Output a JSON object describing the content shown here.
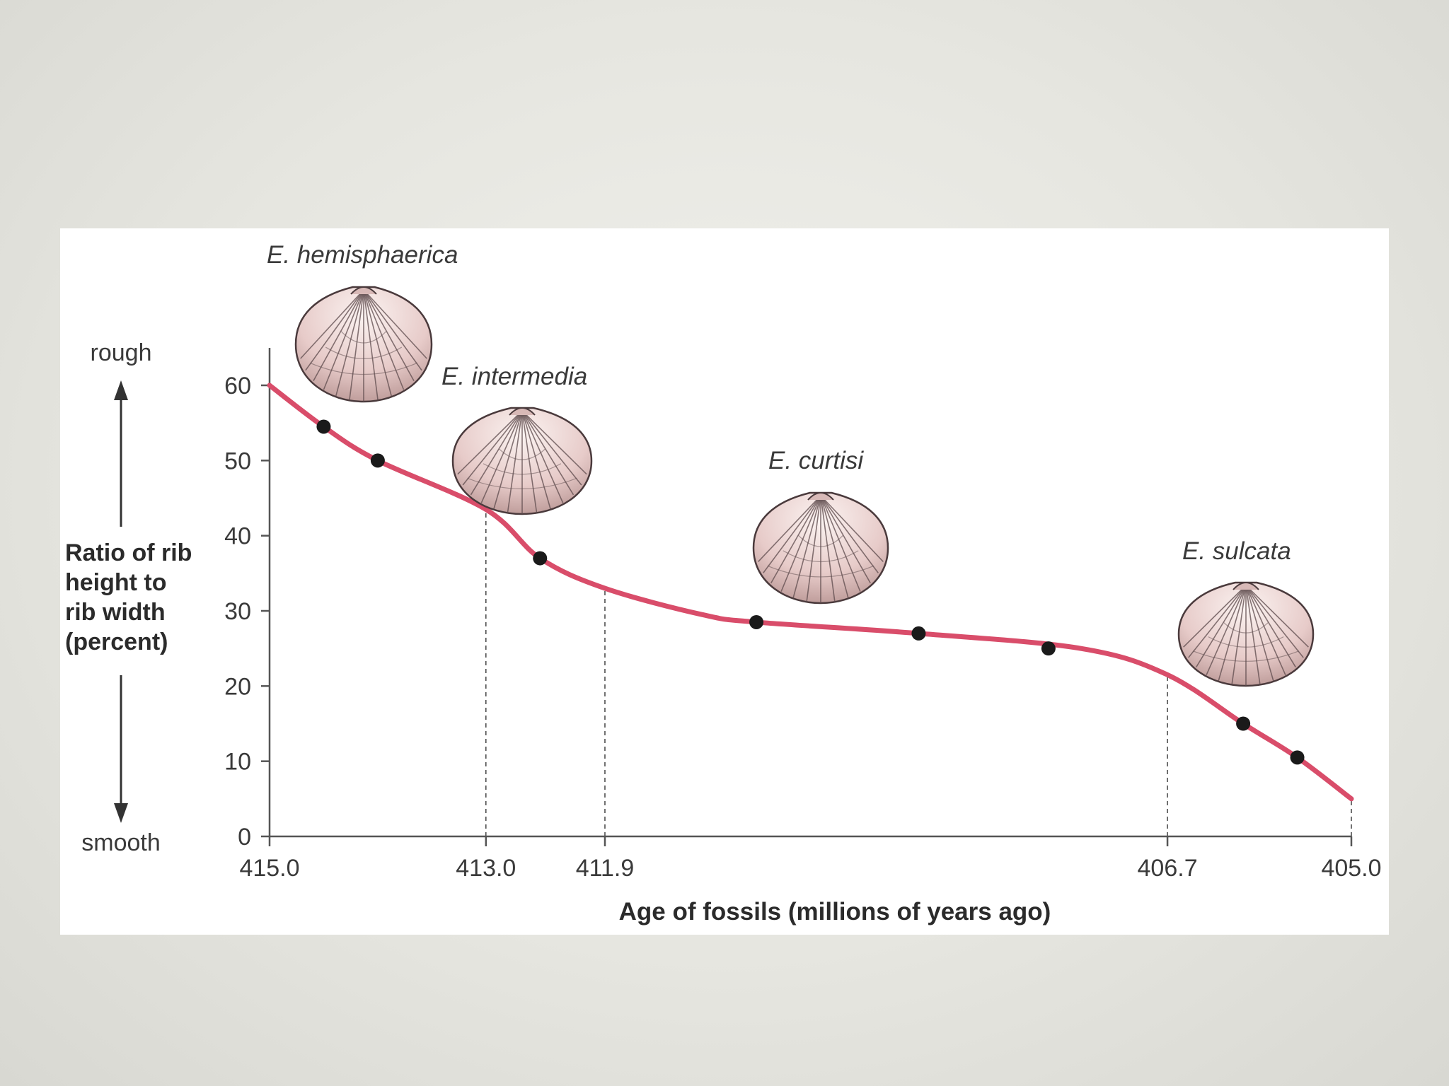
{
  "chart_data": {
    "type": "line",
    "xlabel": "Age of fossils (millions of years ago)",
    "ylabel": [
      "Ratio of rib",
      "height to",
      "rib width",
      "(percent)"
    ],
    "y_top_word": "rough",
    "y_bottom_word": "smooth",
    "ylim": [
      0,
      60
    ],
    "xlim": [
      415.0,
      405.0
    ],
    "yticks": [
      0,
      10,
      20,
      30,
      40,
      50,
      60
    ],
    "xticks": [
      {
        "label": "415.0",
        "value": 415.0
      },
      {
        "label": "413.0",
        "value": 413.0
      },
      {
        "label": "411.9",
        "value": 411.9
      },
      {
        "label": "406.7",
        "value": 406.7
      },
      {
        "label": "405.0",
        "value": 405.0
      }
    ],
    "boundaries": [
      413.0,
      411.9,
      406.7,
      405.0
    ],
    "grid": false,
    "curve": [
      {
        "x": 415.0,
        "y": 60.0
      },
      {
        "x": 414.5,
        "y": 54.5
      },
      {
        "x": 414.0,
        "y": 50.0
      },
      {
        "x": 413.0,
        "y": 43.5
      },
      {
        "x": 412.5,
        "y": 37.0
      },
      {
        "x": 411.9,
        "y": 33.0
      },
      {
        "x": 411.0,
        "y": 29.5
      },
      {
        "x": 410.5,
        "y": 28.5
      },
      {
        "x": 409.0,
        "y": 27.0
      },
      {
        "x": 407.5,
        "y": 25.0
      },
      {
        "x": 406.7,
        "y": 21.5
      },
      {
        "x": 406.0,
        "y": 15.0
      },
      {
        "x": 405.5,
        "y": 10.5
      },
      {
        "x": 405.0,
        "y": 5.0
      }
    ],
    "points": [
      {
        "x": 414.5,
        "y": 54.5
      },
      {
        "x": 414.0,
        "y": 50.0
      },
      {
        "x": 412.5,
        "y": 37.0
      },
      {
        "x": 410.5,
        "y": 28.5
      },
      {
        "x": 409.0,
        "y": 27.0
      },
      {
        "x": 407.8,
        "y": 25.0
      },
      {
        "x": 406.0,
        "y": 15.0
      },
      {
        "x": 405.5,
        "y": 10.5
      }
    ],
    "species": [
      {
        "name": "E. hemisphaerica"
      },
      {
        "name": "E. intermedia"
      },
      {
        "name": "E. curtisi"
      },
      {
        "name": "E. sulcata"
      }
    ],
    "colors": {
      "curve": "#d94d6a",
      "points": "#1a1a1a",
      "axis": "#555555",
      "shell": "#e9cfcd",
      "shell_rib": "#5e4b4d"
    }
  }
}
